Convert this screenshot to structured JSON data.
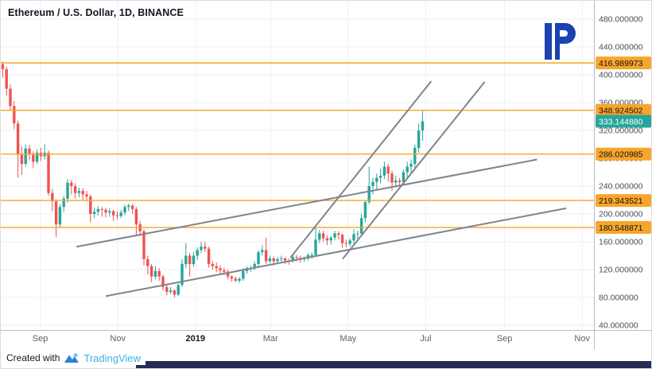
{
  "chart": {
    "title": "Ethereum / U.S. Dollar, 1D, BINANCE",
    "footer": {
      "created_with": "Created with",
      "brand": "TradingView"
    }
  },
  "chart_data": {
    "type": "candlestick",
    "title": "Ethereum / U.S. Dollar, 1D, BINANCE",
    "symbol": "Ethereum / U.S. Dollar",
    "interval": "1D",
    "exchange": "BINANCE",
    "y_ticks": [
      480,
      440,
      400,
      360,
      320,
      280,
      240,
      200,
      160,
      120,
      80,
      40
    ],
    "y_tick_decimals": 6,
    "y_axis_range": [
      30,
      492
    ],
    "x_ticks": [
      {
        "label": "Sep",
        "day": 31,
        "major": false
      },
      {
        "label": "Nov",
        "day": 92,
        "major": false
      },
      {
        "label": "2019",
        "day": 153,
        "major": true
      },
      {
        "label": "Mar",
        "day": 212,
        "major": false
      },
      {
        "label": "May",
        "day": 273,
        "major": false
      },
      {
        "label": "Jul",
        "day": 334,
        "major": false
      },
      {
        "label": "Sep",
        "day": 396,
        "major": false
      },
      {
        "label": "Nov",
        "day": 457,
        "major": false
      }
    ],
    "levels": [
      {
        "price": 416.989973,
        "label": "416.989973"
      },
      {
        "price": 348.924502,
        "label": "348.924502"
      },
      {
        "price": 286.020985,
        "label": "286.020985"
      },
      {
        "price": 219.343521,
        "label": "219.343521"
      },
      {
        "price": 180.548871,
        "label": "180.548871"
      }
    ],
    "last_price": {
      "price": 333.14488,
      "label": "333.144880"
    },
    "trendlines": [
      {
        "from": [
          83,
          82
        ],
        "to": [
          444,
          208
        ]
      },
      {
        "from": [
          60,
          153
        ],
        "to": [
          421,
          278
        ]
      },
      {
        "from": [
          228,
          138
        ],
        "to": [
          338,
          390
        ]
      },
      {
        "from": [
          269,
          136
        ],
        "to": [
          380,
          389
        ]
      }
    ],
    "candle_period_days": 3,
    "candles": [
      [
        415,
        419,
        396,
        408
      ],
      [
        408,
        412,
        370,
        380
      ],
      [
        380,
        386,
        348,
        355
      ],
      [
        355,
        362,
        322,
        330
      ],
      [
        330,
        334,
        252,
        285
      ],
      [
        285,
        297,
        256,
        272
      ],
      [
        272,
        300,
        268,
        294
      ],
      [
        294,
        299,
        277,
        285
      ],
      [
        285,
        290,
        266,
        275
      ],
      [
        275,
        293,
        272,
        288
      ],
      [
        288,
        295,
        276,
        283
      ],
      [
        283,
        300,
        278,
        288
      ],
      [
        288,
        291,
        226,
        230
      ],
      [
        230,
        236,
        204,
        218
      ],
      [
        218,
        221,
        167,
        185
      ],
      [
        185,
        214,
        180,
        210
      ],
      [
        210,
        226,
        203,
        222
      ],
      [
        222,
        250,
        216,
        245
      ],
      [
        245,
        249,
        228,
        240
      ],
      [
        240,
        244,
        222,
        230
      ],
      [
        230,
        238,
        224,
        233
      ],
      [
        233,
        237,
        220,
        228
      ],
      [
        228,
        233,
        218,
        225
      ],
      [
        225,
        228,
        188,
        200
      ],
      [
        200,
        209,
        194,
        203
      ],
      [
        203,
        211,
        198,
        207
      ],
      [
        207,
        210,
        196,
        206
      ],
      [
        206,
        209,
        195,
        202
      ],
      [
        202,
        208,
        196,
        204
      ],
      [
        204,
        206,
        190,
        198
      ],
      [
        198,
        204,
        192,
        197
      ],
      [
        197,
        206,
        194,
        202
      ],
      [
        202,
        213,
        198,
        210
      ],
      [
        210,
        215,
        204,
        212
      ],
      [
        212,
        214,
        200,
        207
      ],
      [
        207,
        210,
        170,
        185
      ],
      [
        185,
        190,
        168,
        175
      ],
      [
        175,
        178,
        126,
        135
      ],
      [
        135,
        140,
        113,
        125
      ],
      [
        125,
        128,
        102,
        110
      ],
      [
        110,
        125,
        106,
        118
      ],
      [
        118,
        122,
        104,
        110
      ],
      [
        110,
        113,
        90,
        95
      ],
      [
        95,
        99,
        83,
        88
      ],
      [
        88,
        95,
        85,
        90
      ],
      [
        90,
        92,
        80,
        84
      ],
      [
        84,
        100,
        82,
        98
      ],
      [
        98,
        135,
        95,
        128
      ],
      [
        128,
        158,
        122,
        140
      ],
      [
        140,
        144,
        110,
        128
      ],
      [
        128,
        145,
        124,
        140
      ],
      [
        140,
        152,
        134,
        148
      ],
      [
        148,
        160,
        144,
        153
      ],
      [
        153,
        160,
        145,
        150
      ],
      [
        150,
        153,
        123,
        128
      ],
      [
        128,
        132,
        120,
        125
      ],
      [
        125,
        130,
        116,
        122
      ],
      [
        122,
        126,
        114,
        119
      ],
      [
        119,
        123,
        112,
        117
      ],
      [
        117,
        120,
        106,
        110
      ],
      [
        110,
        112,
        103,
        107
      ],
      [
        107,
        110,
        102,
        104
      ],
      [
        104,
        109,
        101,
        107
      ],
      [
        107,
        122,
        104,
        118
      ],
      [
        118,
        125,
        114,
        122
      ],
      [
        122,
        126,
        117,
        122
      ],
      [
        122,
        132,
        119,
        128
      ],
      [
        128,
        148,
        125,
        145
      ],
      [
        145,
        155,
        140,
        148
      ],
      [
        148,
        166,
        128,
        132
      ],
      [
        132,
        140,
        129,
        136
      ],
      [
        136,
        139,
        126,
        132
      ],
      [
        132,
        138,
        128,
        135
      ],
      [
        135,
        140,
        131,
        136
      ],
      [
        136,
        138,
        128,
        133
      ],
      [
        133,
        136,
        127,
        132
      ],
      [
        132,
        142,
        130,
        138
      ],
      [
        138,
        141,
        132,
        137
      ],
      [
        137,
        140,
        130,
        135
      ],
      [
        135,
        139,
        131,
        136
      ],
      [
        136,
        144,
        133,
        141
      ],
      [
        141,
        145,
        136,
        141
      ],
      [
        141,
        180,
        139,
        163
      ],
      [
        163,
        177,
        158,
        172
      ],
      [
        172,
        176,
        160,
        165
      ],
      [
        165,
        169,
        155,
        162
      ],
      [
        162,
        168,
        156,
        166
      ],
      [
        166,
        176,
        162,
        172
      ],
      [
        172,
        175,
        163,
        170
      ],
      [
        170,
        172,
        151,
        158
      ],
      [
        158,
        163,
        152,
        157
      ],
      [
        157,
        165,
        153,
        162
      ],
      [
        162,
        178,
        158,
        171
      ],
      [
        171,
        176,
        164,
        172
      ],
      [
        172,
        200,
        168,
        194
      ],
      [
        194,
        220,
        188,
        217
      ],
      [
        217,
        268,
        214,
        240
      ],
      [
        240,
        252,
        228,
        246
      ],
      [
        246,
        258,
        235,
        252
      ],
      [
        252,
        265,
        244,
        255
      ],
      [
        255,
        275,
        250,
        268
      ],
      [
        268,
        272,
        246,
        258
      ],
      [
        258,
        262,
        233,
        245
      ],
      [
        245,
        255,
        238,
        248
      ],
      [
        248,
        252,
        236,
        246
      ],
      [
        246,
        264,
        242,
        260
      ],
      [
        260,
        275,
        252,
        268
      ],
      [
        268,
        278,
        258,
        272
      ],
      [
        272,
        300,
        264,
        295
      ],
      [
        295,
        330,
        288,
        320
      ],
      [
        320,
        349,
        305,
        333.14
      ]
    ],
    "colors": {
      "up": "#26a69a",
      "down": "#ef5350",
      "level": "#f5a623",
      "level_box": "#f7a62b",
      "last_box": "#26a69a",
      "trendline": "#7f848e",
      "grid": "#edeff4",
      "axis_line": "#b8bcc6",
      "axis_text": "#474d57",
      "title_text": "#131722",
      "brand_blue": "#3bb0e8",
      "logo_blue": "#1a43b0",
      "bottom_bar": "#272c55"
    }
  }
}
